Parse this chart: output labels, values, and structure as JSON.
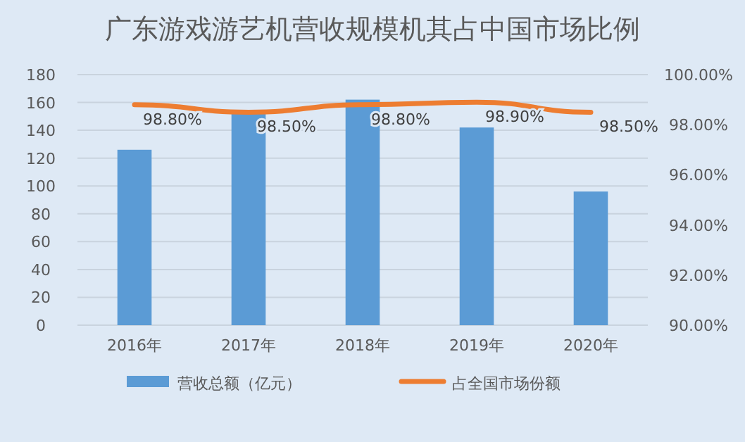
{
  "chart_data": {
    "type": "bar",
    "title": "广东游戏游艺机营收规模机其占中国市场比例",
    "categories": [
      "2016年",
      "2017年",
      "2018年",
      "2019年",
      "2020年"
    ],
    "series": [
      {
        "name": "营收总额（亿元）",
        "color": "#5b9bd5",
        "values": [
          126,
          154,
          162,
          142,
          96
        ]
      },
      {
        "name": "占全国市场份额",
        "type": "line",
        "axis": "y2",
        "color": "#ed7d31",
        "values": [
          98.8,
          98.5,
          98.8,
          98.9,
          98.5
        ],
        "value_labels": [
          "98.80%",
          "98.50%",
          "98.80%",
          "98.90%",
          "98.50%"
        ]
      }
    ],
    "ylim": [
      0,
      180
    ],
    "yticks": [
      0,
      20,
      40,
      60,
      80,
      100,
      120,
      140,
      160,
      180
    ],
    "y2lim": [
      90,
      100
    ],
    "y2ticks": [
      {
        "value": 90,
        "label": "90.00%"
      },
      {
        "value": 92,
        "label": "92.00%"
      },
      {
        "value": 94,
        "label": "94.00%"
      },
      {
        "value": 96,
        "label": "96.00%"
      },
      {
        "value": 98,
        "label": "98.00%"
      },
      {
        "value": 100,
        "label": "100.00%"
      }
    ],
    "grid": "y",
    "legend": "bottom",
    "marker": "none"
  }
}
